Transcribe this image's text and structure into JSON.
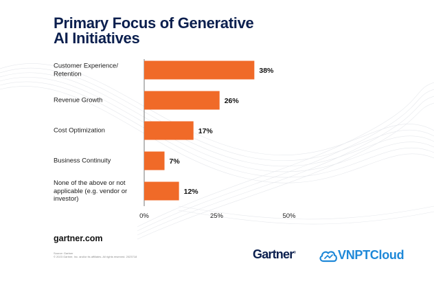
{
  "title": {
    "line1": "Primary Focus of Generative",
    "line2": "AI Initiatives"
  },
  "categories": [
    {
      "lines": [
        "Customer Experience/",
        "Retention"
      ]
    },
    {
      "lines": [
        "Revenue Growth"
      ]
    },
    {
      "lines": [
        "Cost Optimization"
      ]
    },
    {
      "lines": [
        "Business Continuity"
      ]
    },
    {
      "lines": [
        "None of the above or not",
        "applicable (e.g. vendor or",
        "investor)"
      ]
    }
  ],
  "chart_data": {
    "type": "bar",
    "orientation": "horizontal",
    "title": "Primary Focus of Generative AI Initiatives",
    "categories": [
      "Customer Experience/ Retention",
      "Revenue Growth",
      "Cost Optimization",
      "Business Continuity",
      "None of the above or not applicable (e.g. vendor or investor)"
    ],
    "values": [
      38,
      26,
      17,
      7,
      12
    ],
    "value_labels": [
      "38%",
      "26%",
      "17%",
      "7%",
      "12%"
    ],
    "unit": "%",
    "xlim": [
      0,
      50
    ],
    "xticks": [
      0,
      25,
      50
    ],
    "xtick_labels": [
      "0%",
      "25%",
      "50%"
    ],
    "xlabel": "",
    "ylabel": "",
    "grid": false,
    "legend": "none",
    "bar_color": "#f06a28"
  },
  "footer": {
    "site": "gartner.com",
    "source_line1": "Source: Gartner",
    "source_line2": "© 2023 Gartner, Inc. and/or its affiliates. All rights reserved. 2023718",
    "gartner_logo_text": "Gartner",
    "gartner_reg": "®",
    "vnpt_logo_text": "VNPTCloud"
  },
  "colors": {
    "title": "#0b1f4e",
    "bar": "#f06a28",
    "axis": "#555555",
    "vnpt_blue": "#1e88d8"
  },
  "icons": {
    "vnpt": "cloud-icon"
  }
}
